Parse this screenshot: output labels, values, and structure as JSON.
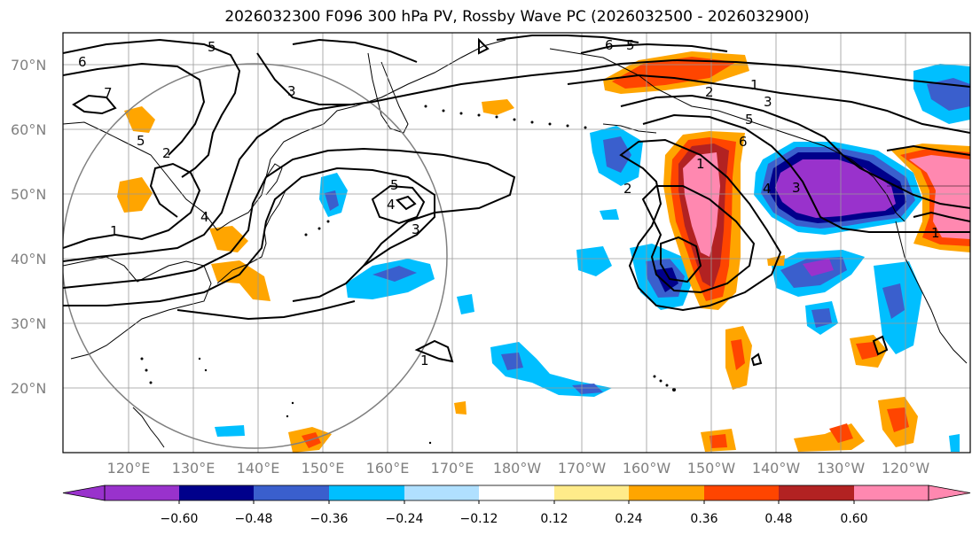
{
  "title": "2026032300 F096 300 hPa PV, Rossby Wave PC (2026032500 - 2026032900)",
  "lat_labels": [
    "70°N",
    "60°N",
    "50°N",
    "40°N",
    "30°N",
    "20°N"
  ],
  "lon_labels": [
    "120°E",
    "130°E",
    "140°E",
    "150°E",
    "160°E",
    "170°E",
    "180°W",
    "170°W",
    "160°W",
    "150°W",
    "140°W",
    "130°W",
    "120°W"
  ],
  "colorbar": {
    "ticks": [
      "−0.60",
      "−0.48",
      "−0.36",
      "−0.24",
      "−0.12",
      "0.12",
      "0.24",
      "0.36",
      "0.48",
      "0.60"
    ],
    "colors": [
      "#9932cc",
      "#00008b",
      "#3a5fcd",
      "#00bfff",
      "#b0e0ff",
      "#ffffff",
      "#ffeb8a",
      "#ffa500",
      "#ff4500",
      "#b22222",
      "#ff88b0",
      "#ff88b0"
    ]
  },
  "contour_labels": [
    "6",
    "5",
    "7",
    "5",
    "2",
    "4",
    "1",
    "3",
    "5",
    "4",
    "3",
    "1",
    "6",
    "5",
    "1",
    "2",
    "3",
    "5",
    "6",
    "3",
    "1",
    "4",
    "2",
    "1"
  ]
}
